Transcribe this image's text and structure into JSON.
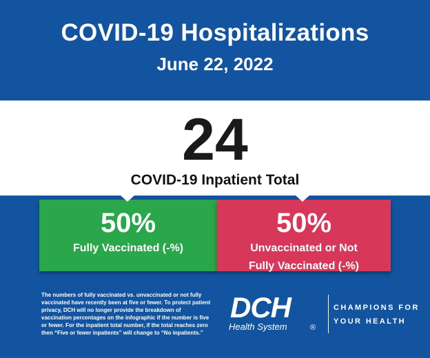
{
  "header": {
    "title": "COVID-19 Hospitalizations",
    "date": "June 22, 2022"
  },
  "inpatients": {
    "total": "24",
    "label": "COVID-19 Inpatient Total"
  },
  "vaccinated": {
    "percent": "50%",
    "label": "Fully Vaccinated (-%)",
    "color": "#2aa74a"
  },
  "unvaccinated": {
    "percent": "50%",
    "label_line1": "Unvaccinated or Not",
    "label_line2": "Fully Vaccinated (-%)",
    "color": "#d7385a"
  },
  "footnote": "The numbers of fully vaccinated vs. unvaccinated or not fully vaccinated have recently been at five or fewer. To protect patient privacy, DCH will no longer provide the breakdown of vaccination percentages on the infographic if the number is five or fewer. For the inpatient total number, if the total reaches zero then “Five or fewer inpatients” will change to “No inpatients.”",
  "brand": {
    "logo_text": "DCH",
    "logo_subtext": "Health System",
    "registered": "®",
    "tagline_line1": "CHAMPIONS FOR",
    "tagline_line2": "YOUR HEALTH"
  },
  "colors": {
    "background": "#1354a0",
    "band": "#ffffff"
  }
}
